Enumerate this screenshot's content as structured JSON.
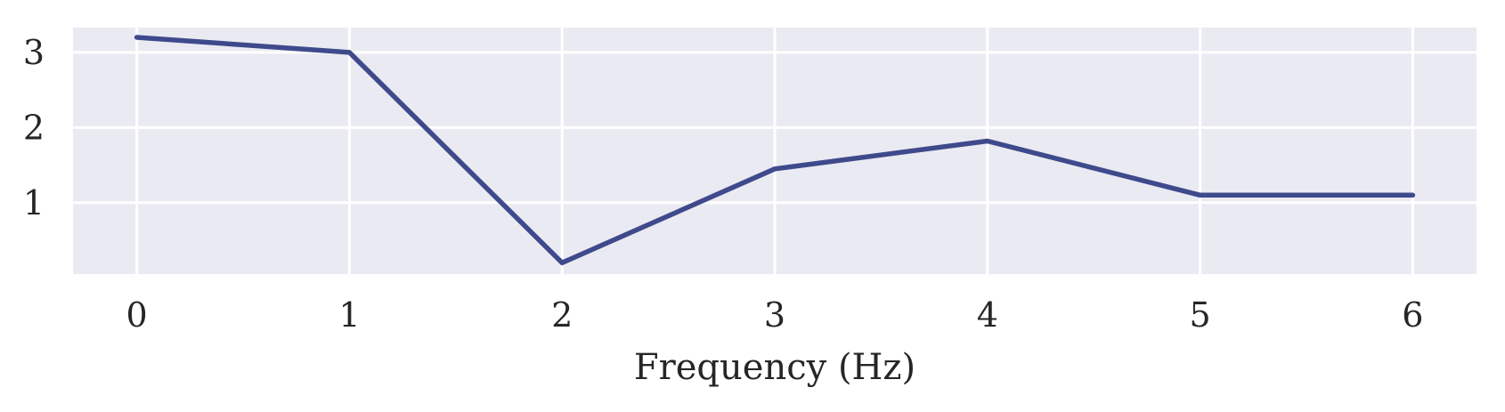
{
  "chart_data": {
    "type": "line",
    "title": "",
    "xlabel": "Frequency (Hz)",
    "ylabel": "",
    "x": [
      0,
      1,
      2,
      3,
      4,
      5,
      6
    ],
    "series": [
      {
        "values": [
          3.2,
          3.0,
          0.2,
          1.45,
          1.82,
          1.1,
          1.1
        ],
        "color": "#3f4a8c"
      }
    ],
    "xlim": [
      -0.3,
      6.3
    ],
    "ylim": [
      0.05,
      3.33
    ],
    "xticks": [
      0,
      1,
      2,
      3,
      4,
      5,
      6
    ],
    "yticks": [
      1,
      2,
      3
    ],
    "xtick_labels": [
      "0",
      "1",
      "2",
      "3",
      "4",
      "5",
      "6"
    ],
    "ytick_labels": [
      "1",
      "2",
      "3"
    ],
    "grid": true,
    "legend": "none",
    "background_color": "#eaeaf2",
    "grid_color": "#ffffff"
  }
}
